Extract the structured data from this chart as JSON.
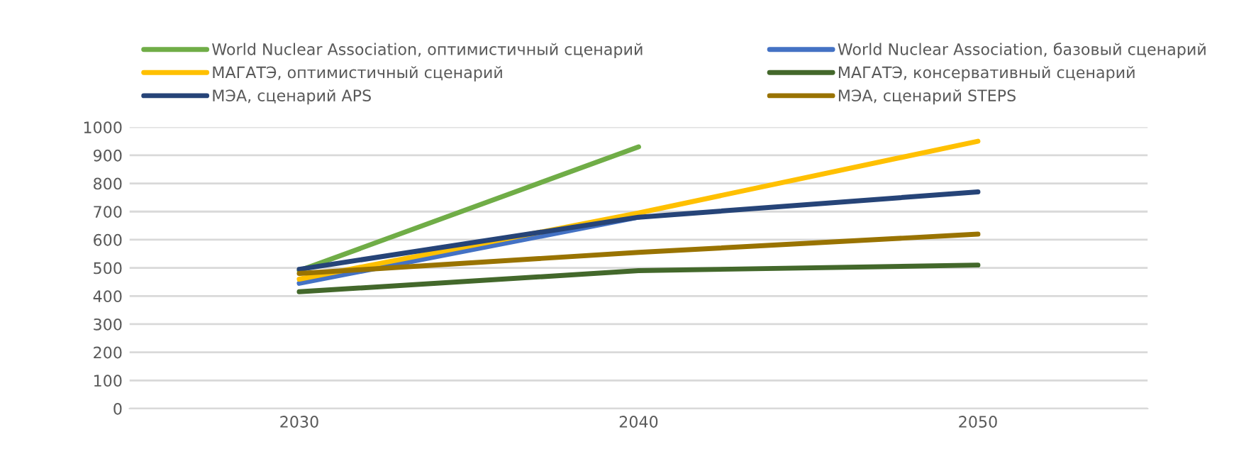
{
  "chart_data": {
    "type": "line",
    "categories": [
      "2030",
      "2040",
      "2050"
    ],
    "series": [
      {
        "name": "World Nuclear Association, оптимистичный сценарий",
        "color": "#70ad47",
        "values": [
          490,
          930,
          null
        ]
      },
      {
        "name": "World Nuclear Association, базовый сценарий",
        "color": "#4472c4",
        "values": [
          445,
          680,
          null
        ]
      },
      {
        "name": "МАГАТЭ, оптимистичный сценарий",
        "color": "#ffc000",
        "values": [
          460,
          695,
          950
        ]
      },
      {
        "name": "МАГАТЭ, консервативный сценарий",
        "color": "#43682b",
        "values": [
          415,
          490,
          510
        ]
      },
      {
        "name": "МЭА, сценарий APS",
        "color": "#264478",
        "values": [
          495,
          680,
          770
        ]
      },
      {
        "name": "МЭА, сценарий STEPS",
        "color": "#997300",
        "values": [
          480,
          555,
          620
        ]
      }
    ],
    "ylim": [
      0,
      1000
    ],
    "yticks": [
      0,
      100,
      200,
      300,
      400,
      500,
      600,
      700,
      800,
      900,
      1000
    ],
    "grid": "y",
    "legend": "top",
    "marker": "none",
    "line_style": "solid"
  }
}
